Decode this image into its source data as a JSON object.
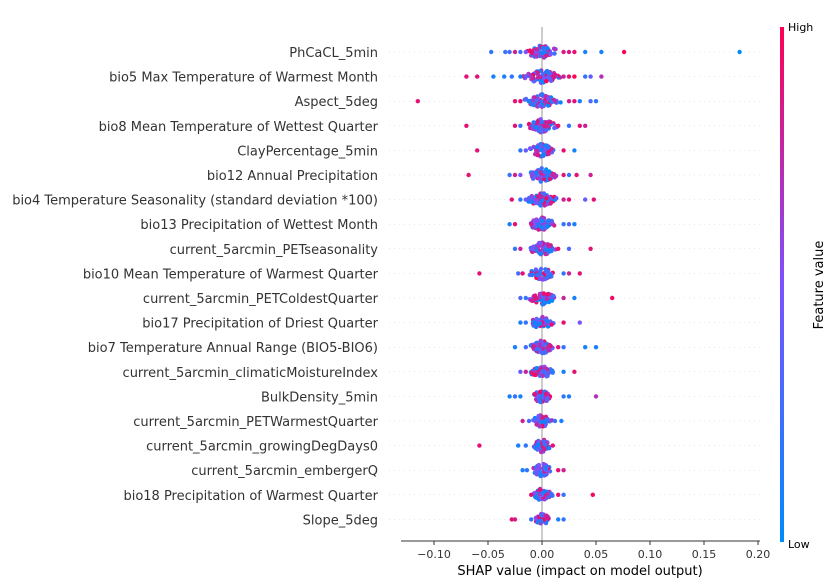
{
  "chart_data": {
    "type": "scatter",
    "subtype": "shap-beeswarm",
    "title": "",
    "xlabel": "SHAP value (impact on model output)",
    "ylabel": "",
    "xlim": [
      -0.13,
      0.2
    ],
    "xticks": [
      -0.1,
      -0.05,
      0.0,
      0.05,
      0.1,
      0.15,
      0.2
    ],
    "xtick_labels": [
      "−0.10",
      "−0.05",
      "0.00",
      "0.05",
      "0.10",
      "0.15",
      "0.20"
    ],
    "grid": false,
    "colorbar": {
      "title": "Feature value",
      "high_label": "High",
      "low_label": "Low",
      "high_color": "#ff0052",
      "mid_color": "#7c52ff",
      "low_color": "#008bfb"
    },
    "features": [
      {
        "name": "PhCaCL_5min",
        "outliers": [
          [
            -0.047,
            0.2
          ],
          [
            -0.034,
            0.2
          ],
          [
            -0.03,
            0.3
          ],
          [
            -0.025,
            0.8
          ],
          [
            -0.02,
            0.25
          ],
          [
            -0.015,
            0.5
          ],
          [
            0.02,
            0.85
          ],
          [
            0.025,
            0.85
          ],
          [
            0.03,
            0.9
          ],
          [
            0.04,
            0.1
          ],
          [
            0.055,
            0.1
          ],
          [
            0.076,
            1.0
          ],
          [
            0.183,
            0.0
          ]
        ],
        "spread": 0.018,
        "count": 70
      },
      {
        "name": "bio5 Max Temperature of Warmest Month",
        "outliers": [
          [
            -0.07,
            0.9
          ],
          [
            -0.06,
            0.9
          ],
          [
            -0.045,
            0.1
          ],
          [
            -0.035,
            0.1
          ],
          [
            -0.028,
            0.2
          ],
          [
            -0.02,
            0.1
          ],
          [
            -0.015,
            0.4
          ],
          [
            -0.01,
            0.7
          ],
          [
            0.02,
            0.8
          ],
          [
            0.025,
            0.9
          ],
          [
            0.03,
            1.0
          ],
          [
            0.04,
            0.2
          ],
          [
            0.045,
            0.4
          ],
          [
            0.055,
            0.7
          ]
        ],
        "spread": 0.02,
        "count": 70
      },
      {
        "name": "Aspect_5deg",
        "outliers": [
          [
            -0.115,
            0.9
          ],
          [
            -0.025,
            0.9
          ],
          [
            -0.02,
            0.9
          ],
          [
            0.025,
            0.8
          ],
          [
            0.03,
            0.9
          ],
          [
            0.035,
            0.1
          ],
          [
            0.045,
            0.3
          ],
          [
            0.05,
            0.2
          ]
        ],
        "spread": 0.018,
        "count": 70
      },
      {
        "name": "bio8 Mean Temperature of Wettest Quarter",
        "outliers": [
          [
            -0.07,
            0.9
          ],
          [
            -0.025,
            0.9
          ],
          [
            -0.02,
            0.2
          ],
          [
            0.015,
            0.9
          ],
          [
            0.025,
            0.2
          ],
          [
            0.035,
            0.9
          ],
          [
            0.04,
            0.8
          ]
        ],
        "spread": 0.015,
        "count": 60
      },
      {
        "name": "ClayPercentage_5min",
        "outliers": [
          [
            -0.06,
            0.9
          ],
          [
            -0.02,
            0.2
          ],
          [
            -0.015,
            0.4
          ],
          [
            0.02,
            0.9
          ],
          [
            0.03,
            0.1
          ]
        ],
        "spread": 0.013,
        "count": 55
      },
      {
        "name": "bio12 Annual Precipitation",
        "outliers": [
          [
            -0.068,
            0.9
          ],
          [
            -0.03,
            0.2
          ],
          [
            -0.025,
            0.8
          ],
          [
            -0.02,
            0.5
          ],
          [
            0.02,
            0.9
          ],
          [
            0.025,
            0.2
          ],
          [
            0.032,
            0.9
          ],
          [
            0.045,
            0.8
          ]
        ],
        "spread": 0.015,
        "count": 60
      },
      {
        "name": "bio4 Temperature Seasonality (standard deviation *100)",
        "outliers": [
          [
            -0.028,
            0.9
          ],
          [
            -0.02,
            0.2
          ],
          [
            -0.015,
            0.4
          ],
          [
            0.02,
            0.8
          ],
          [
            0.025,
            0.9
          ],
          [
            0.04,
            0.4
          ],
          [
            0.048,
            0.9
          ]
        ],
        "spread": 0.016,
        "count": 65
      },
      {
        "name": "bio13 Precipitation of Wettest Month",
        "outliers": [
          [
            -0.03,
            0.1
          ],
          [
            -0.025,
            0.9
          ],
          [
            0.02,
            0.2
          ],
          [
            0.025,
            0.3
          ],
          [
            0.03,
            0.1
          ]
        ],
        "spread": 0.014,
        "count": 60
      },
      {
        "name": "current_5arcmin_PETseasonality",
        "outliers": [
          [
            -0.025,
            0.2
          ],
          [
            -0.02,
            0.8
          ],
          [
            0.015,
            0.9
          ],
          [
            0.025,
            0.3
          ],
          [
            0.045,
            0.9
          ]
        ],
        "spread": 0.014,
        "count": 60
      },
      {
        "name": "bio10 Mean Temperature of Warmest Quarter",
        "outliers": [
          [
            -0.058,
            0.9
          ],
          [
            -0.022,
            0.3
          ],
          [
            -0.018,
            0.9
          ],
          [
            0.02,
            0.2
          ],
          [
            0.025,
            0.8
          ],
          [
            0.035,
            0.9
          ]
        ],
        "spread": 0.013,
        "count": 55
      },
      {
        "name": "current_5arcmin_PETColdestQuarter",
        "outliers": [
          [
            -0.02,
            0.3
          ],
          [
            -0.015,
            0.2
          ],
          [
            0.02,
            0.8
          ],
          [
            0.03,
            0.1
          ],
          [
            0.065,
            0.95
          ]
        ],
        "spread": 0.013,
        "count": 55
      },
      {
        "name": "bio17 Precipitation of Driest Quarter",
        "outliers": [
          [
            -0.02,
            0.1
          ],
          [
            -0.015,
            0.2
          ],
          [
            0.02,
            0.9
          ],
          [
            0.035,
            0.5
          ]
        ],
        "spread": 0.012,
        "count": 55
      },
      {
        "name": "bio7 Temperature Annual Range (BIO5-BIO6)",
        "outliers": [
          [
            -0.025,
            0.1
          ],
          [
            -0.015,
            0.3
          ],
          [
            0.015,
            0.9
          ],
          [
            0.02,
            0.2
          ],
          [
            0.04,
            0.1
          ],
          [
            0.05,
            0.1
          ]
        ],
        "spread": 0.012,
        "count": 55
      },
      {
        "name": "current_5arcmin_climaticMoistureIndex",
        "outliers": [
          [
            -0.02,
            0.4
          ],
          [
            -0.015,
            0.8
          ],
          [
            0.02,
            0.1
          ],
          [
            0.03,
            0.9
          ]
        ],
        "spread": 0.012,
        "count": 50
      },
      {
        "name": "BulkDensity_5min",
        "outliers": [
          [
            -0.03,
            0.1
          ],
          [
            -0.025,
            0.2
          ],
          [
            -0.02,
            0.1
          ],
          [
            0.02,
            0.2
          ],
          [
            0.025,
            0.1
          ],
          [
            0.05,
            0.7
          ]
        ],
        "spread": 0.01,
        "count": 50
      },
      {
        "name": "current_5arcmin_PETWarmestQuarter",
        "outliers": [
          [
            -0.018,
            0.8
          ],
          [
            -0.012,
            0.3
          ],
          [
            0.012,
            0.2
          ],
          [
            0.018,
            0.1
          ]
        ],
        "spread": 0.01,
        "count": 50
      },
      {
        "name": "current_5arcmin_growingDegDays0",
        "outliers": [
          [
            -0.058,
            0.9
          ],
          [
            -0.022,
            0.1
          ],
          [
            -0.015,
            0.2
          ],
          [
            0.01,
            0.9
          ]
        ],
        "spread": 0.009,
        "count": 45
      },
      {
        "name": "current_5arcmin_embergerQ",
        "outliers": [
          [
            -0.018,
            0.1
          ],
          [
            -0.014,
            0.2
          ],
          [
            0.015,
            0.9
          ],
          [
            0.02,
            0.8
          ]
        ],
        "spread": 0.01,
        "count": 45
      },
      {
        "name": "bio18 Precipitation of Warmest Quarter",
        "outliers": [
          [
            -0.01,
            0.9
          ],
          [
            0.015,
            0.9
          ],
          [
            0.02,
            0.2
          ],
          [
            0.047,
            0.95
          ]
        ],
        "spread": 0.01,
        "count": 45
      },
      {
        "name": "Slope_5deg",
        "outliers": [
          [
            -0.028,
            0.9
          ],
          [
            -0.025,
            0.85
          ],
          [
            -0.01,
            0.2
          ],
          [
            0.015,
            0.1
          ],
          [
            0.02,
            0.2
          ]
        ],
        "spread": 0.008,
        "count": 40
      }
    ]
  }
}
